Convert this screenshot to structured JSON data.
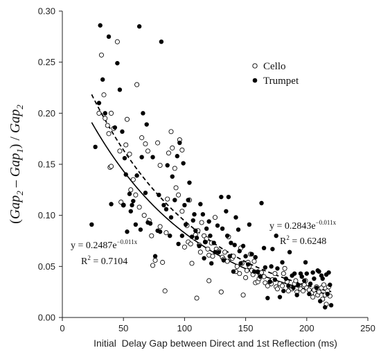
{
  "chart_data": {
    "type": "scatter",
    "xlabel": "Initial  Delay Gap between Direct and 1st Reflection (ms)",
    "ylabel": {
      "open": "(",
      "gap": "Gap",
      "sub2": "2",
      "minus": " – ",
      "sub1": "1",
      "close": ") / ",
      "gap2": "Gap",
      "sub3": "2"
    },
    "xlim": [
      0,
      250
    ],
    "ylim": [
      0,
      0.3
    ],
    "x_ticks": [
      0,
      50,
      100,
      150,
      200,
      250
    ],
    "x_tick_labels": [
      "0",
      "50",
      "100",
      "150",
      "200",
      "250"
    ],
    "y_ticks": [
      0,
      0.05,
      0.1,
      0.15,
      0.2,
      0.25,
      0.3
    ],
    "y_tick_labels": [
      "0.00",
      "0.05",
      "0.10",
      "0.15",
      "0.20",
      "0.25",
      "0.30"
    ],
    "grid": false,
    "legend_position": "top-right",
    "series": [
      {
        "name": "Cello",
        "marker": "open-circle",
        "fit": {
          "a": 0.2487,
          "b": 0.011,
          "x_range": [
            24,
            220
          ],
          "line": "solid",
          "equation": "y = 0.2487e",
          "exponent": "−0.011x",
          "r2_label": "R",
          "r2_sup": "2",
          "r2_value": " = 0.7104"
        },
        "points": [
          [
            30,
            0.2
          ],
          [
            32,
            0.257
          ],
          [
            34,
            0.218
          ],
          [
            35,
            0.195
          ],
          [
            37,
            0.188
          ],
          [
            38,
            0.18
          ],
          [
            39,
            0.147
          ],
          [
            40,
            0.148
          ],
          [
            40,
            0.2
          ],
          [
            42,
            0.185
          ],
          [
            45,
            0.27
          ],
          [
            47,
            0.163
          ],
          [
            48,
            0.113
          ],
          [
            50,
            0.11
          ],
          [
            52,
            0.169
          ],
          [
            53,
            0.194
          ],
          [
            55,
            0.16
          ],
          [
            56,
            0.125
          ],
          [
            58,
            0.135
          ],
          [
            60,
            0.12
          ],
          [
            61,
            0.228
          ],
          [
            63,
            0.108
          ],
          [
            65,
            0.176
          ],
          [
            67,
            0.1
          ],
          [
            68,
            0.17
          ],
          [
            70,
            0.163
          ],
          [
            71,
            0.095
          ],
          [
            73,
            0.08
          ],
          [
            74,
            0.051
          ],
          [
            76,
            0.056
          ],
          [
            78,
            0.171
          ],
          [
            80,
            0.089
          ],
          [
            80,
            0.149
          ],
          [
            82,
            0.054
          ],
          [
            84,
            0.026
          ],
          [
            85,
            0.083
          ],
          [
            86,
            0.116
          ],
          [
            87,
            0.161
          ],
          [
            89,
            0.182
          ],
          [
            90,
            0.166
          ],
          [
            92,
            0.146
          ],
          [
            93,
            0.127
          ],
          [
            95,
            0.12
          ],
          [
            96,
            0.174
          ],
          [
            98,
            0.104
          ],
          [
            98,
            0.164
          ],
          [
            100,
            0.069
          ],
          [
            102,
            0.09
          ],
          [
            103,
            0.074
          ],
          [
            104,
            0.115
          ],
          [
            105,
            0.072
          ],
          [
            106,
            0.053
          ],
          [
            108,
            0.078
          ],
          [
            109,
            0.081
          ],
          [
            110,
            0.019
          ],
          [
            111,
            0.085
          ],
          [
            112,
            0.071
          ],
          [
            113,
            0.064
          ],
          [
            114,
            0.093
          ],
          [
            116,
            0.08
          ],
          [
            117,
            0.074
          ],
          [
            118,
            0.077
          ],
          [
            119,
            0.067
          ],
          [
            120,
            0.061
          ],
          [
            120,
            0.036
          ],
          [
            122,
            0.073
          ],
          [
            123,
            0.06
          ],
          [
            125,
            0.098
          ],
          [
            126,
            0.067
          ],
          [
            128,
            0.065
          ],
          [
            130,
            0.025
          ],
          [
            131,
            0.059
          ],
          [
            132,
            0.057
          ],
          [
            133,
            0.064
          ],
          [
            135,
            0.055
          ],
          [
            136,
            0.079
          ],
          [
            138,
            0.058
          ],
          [
            139,
            0.058
          ],
          [
            140,
            0.06
          ],
          [
            142,
            0.045
          ],
          [
            143,
            0.05
          ],
          [
            145,
            0.043
          ],
          [
            146,
            0.068
          ],
          [
            147,
            0.053
          ],
          [
            148,
            0.022
          ],
          [
            150,
            0.039
          ],
          [
            151,
            0.046
          ],
          [
            152,
            0.054
          ],
          [
            153,
            0.05
          ],
          [
            154,
            0.062
          ],
          [
            155,
            0.046
          ],
          [
            156,
            0.042
          ],
          [
            157,
            0.055
          ],
          [
            158,
            0.034
          ],
          [
            160,
            0.035
          ],
          [
            161,
            0.038
          ],
          [
            162,
            0.041
          ],
          [
            163,
            0.044
          ],
          [
            165,
            0.04
          ],
          [
            166,
            0.034
          ],
          [
            168,
            0.031
          ],
          [
            170,
            0.035
          ],
          [
            171,
            0.033
          ],
          [
            172,
            0.037
          ],
          [
            174,
            0.043
          ],
          [
            175,
            0.03
          ],
          [
            176,
            0.028
          ],
          [
            178,
            0.033
          ],
          [
            180,
            0.031
          ],
          [
            181,
            0.043
          ],
          [
            182,
            0.048
          ],
          [
            184,
            0.035
          ],
          [
            185,
            0.026
          ],
          [
            186,
            0.03
          ],
          [
            188,
            0.028
          ],
          [
            190,
            0.033
          ],
          [
            191,
            0.036
          ],
          [
            192,
            0.025
          ],
          [
            194,
            0.031
          ],
          [
            195,
            0.028
          ],
          [
            197,
            0.026
          ],
          [
            198,
            0.032
          ],
          [
            199,
            0.036
          ],
          [
            200,
            0.029
          ],
          [
            202,
            0.027
          ],
          [
            204,
            0.024
          ],
          [
            205,
            0.02
          ],
          [
            206,
            0.027
          ],
          [
            208,
            0.03
          ],
          [
            209,
            0.022
          ],
          [
            210,
            0.025
          ],
          [
            212,
            0.029
          ],
          [
            213,
            0.018
          ],
          [
            214,
            0.032
          ],
          [
            215,
            0.022
          ],
          [
            216,
            0.013
          ],
          [
            217,
            0.026
          ],
          [
            218,
            0.03
          ],
          [
            219,
            0.021
          ]
        ]
      },
      {
        "name": "Trumpet",
        "marker": "filled-circle",
        "fit": {
          "a": 0.2843,
          "b": 0.011,
          "x_range": [
            24,
            220
          ],
          "line": "dashed",
          "equation": "y = 0.2843e",
          "exponent": "−0.011x",
          "r2_label": "R",
          "r2_sup": "2",
          "r2_value": " = 0.6248"
        },
        "points": [
          [
            24,
            0.091
          ],
          [
            27,
            0.167
          ],
          [
            30,
            0.21
          ],
          [
            31,
            0.286
          ],
          [
            33,
            0.233
          ],
          [
            35,
            0.2
          ],
          [
            38,
            0.275
          ],
          [
            40,
            0.111
          ],
          [
            43,
            0.186
          ],
          [
            45,
            0.249
          ],
          [
            47,
            0.223
          ],
          [
            49,
            0.182
          ],
          [
            50,
            0.11
          ],
          [
            51,
            0.156
          ],
          [
            52,
            0.14
          ],
          [
            53,
            0.084
          ],
          [
            55,
            0.121
          ],
          [
            56,
            0.104
          ],
          [
            57,
            0.11
          ],
          [
            58,
            0.114
          ],
          [
            60,
            0.091
          ],
          [
            61,
            0.139
          ],
          [
            63,
            0.285
          ],
          [
            64,
            0.086
          ],
          [
            65,
            0.157
          ],
          [
            66,
            0.2
          ],
          [
            68,
            0.122
          ],
          [
            69,
            0.189
          ],
          [
            70,
            0.093
          ],
          [
            72,
            0.092
          ],
          [
            74,
            0.157
          ],
          [
            76,
            0.06
          ],
          [
            78,
            0.085
          ],
          [
            79,
            0.12
          ],
          [
            80,
            0.084
          ],
          [
            81,
            0.27
          ],
          [
            83,
            0.11
          ],
          [
            85,
            0.106
          ],
          [
            86,
            0.149
          ],
          [
            88,
            0.08
          ],
          [
            89,
            0.098
          ],
          [
            90,
            0.138
          ],
          [
            92,
            0.115
          ],
          [
            94,
            0.158
          ],
          [
            95,
            0.072
          ],
          [
            96,
            0.171
          ],
          [
            98,
            0.08
          ],
          [
            99,
            0.151
          ],
          [
            100,
            0.11
          ],
          [
            101,
            0.091
          ],
          [
            103,
            0.115
          ],
          [
            104,
            0.132
          ],
          [
            106,
            0.079
          ],
          [
            107,
            0.095
          ],
          [
            108,
            0.101
          ],
          [
            109,
            0.085
          ],
          [
            110,
            0.078
          ],
          [
            112,
            0.07
          ],
          [
            113,
            0.111
          ],
          [
            115,
            0.101
          ],
          [
            116,
            0.058
          ],
          [
            117,
            0.074
          ],
          [
            118,
            0.087
          ],
          [
            120,
            0.094
          ],
          [
            121,
            0.08
          ],
          [
            122,
            0.053
          ],
          [
            124,
            0.073
          ],
          [
            125,
            0.064
          ],
          [
            127,
            0.09
          ],
          [
            128,
            0.064
          ],
          [
            130,
            0.118
          ],
          [
            131,
            0.087
          ],
          [
            132,
            0.056
          ],
          [
            134,
            0.104
          ],
          [
            135,
            0.08
          ],
          [
            136,
            0.118
          ],
          [
            137,
            0.06
          ],
          [
            138,
            0.073
          ],
          [
            140,
            0.045
          ],
          [
            141,
            0.071
          ],
          [
            142,
            0.098
          ],
          [
            144,
            0.086
          ],
          [
            145,
            0.065
          ],
          [
            146,
            0.053
          ],
          [
            148,
            0.07
          ],
          [
            150,
            0.06
          ],
          [
            152,
            0.052
          ],
          [
            153,
            0.091
          ],
          [
            155,
            0.062
          ],
          [
            157,
            0.045
          ],
          [
            158,
            0.059
          ],
          [
            160,
            0.045
          ],
          [
            162,
            0.04
          ],
          [
            163,
            0.112
          ],
          [
            165,
            0.068
          ],
          [
            166,
            0.049
          ],
          [
            168,
            0.019
          ],
          [
            170,
            0.035
          ],
          [
            171,
            0.05
          ],
          [
            172,
            0.067
          ],
          [
            174,
            0.037
          ],
          [
            175,
            0.08
          ],
          [
            176,
            0.048
          ],
          [
            178,
            0.02
          ],
          [
            180,
            0.054
          ],
          [
            181,
            0.026
          ],
          [
            183,
            0.038
          ],
          [
            185,
            0.031
          ],
          [
            186,
            0.064
          ],
          [
            188,
            0.041
          ],
          [
            189,
            0.029
          ],
          [
            190,
            0.043
          ],
          [
            192,
            0.022
          ],
          [
            193,
            0.032
          ],
          [
            195,
            0.043
          ],
          [
            196,
            0.04
          ],
          [
            198,
            0.036
          ],
          [
            199,
            0.054
          ],
          [
            200,
            0.043
          ],
          [
            202,
            0.023
          ],
          [
            203,
            0.033
          ],
          [
            205,
            0.044
          ],
          [
            206,
            0.038
          ],
          [
            208,
            0.029
          ],
          [
            209,
            0.046
          ],
          [
            210,
            0.045
          ],
          [
            211,
            0.016
          ],
          [
            212,
            0.041
          ],
          [
            213,
            0.038
          ],
          [
            215,
            0.01
          ],
          [
            216,
            0.042
          ],
          [
            217,
            0.023
          ],
          [
            218,
            0.044
          ],
          [
            219,
            0.032
          ],
          [
            220,
            0.012
          ]
        ]
      }
    ]
  }
}
